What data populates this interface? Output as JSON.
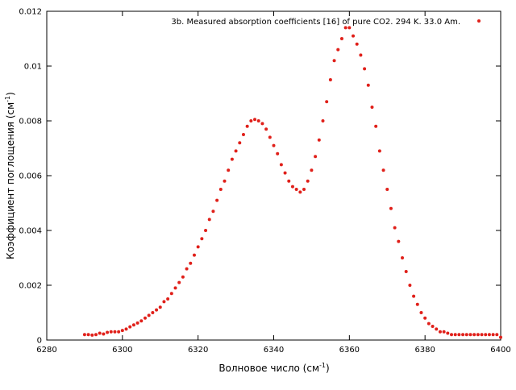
{
  "chart_data": {
    "type": "scatter",
    "xlabel": [
      "Волновое число (см",
      "-1",
      ")"
    ],
    "ylabel": [
      "Коэффициент поглощения (см",
      "-1",
      ")"
    ],
    "xlim": [
      6280,
      6400
    ],
    "xticks": [
      6280,
      6300,
      6320,
      6340,
      6360,
      6380,
      6400
    ],
    "ylim": [
      0,
      0.012
    ],
    "yticks": [
      0,
      0.002,
      0.004,
      0.006,
      0.008,
      0.01,
      0.012
    ],
    "legend": "top-right",
    "series": [
      {
        "name": "3b. Measured absorption coefficients [16] of pure CO2. 294 K. 33.0 Am.",
        "color": "#e0201a",
        "x": [
          6290,
          6291,
          6292,
          6293,
          6294,
          6295,
          6296,
          6297,
          6298,
          6299,
          6300,
          6301,
          6302,
          6303,
          6304,
          6305,
          6306,
          6307,
          6308,
          6309,
          6310,
          6311,
          6312,
          6313,
          6314,
          6315,
          6316,
          6317,
          6318,
          6319,
          6320,
          6321,
          6322,
          6323,
          6324,
          6325,
          6326,
          6327,
          6328,
          6329,
          6330,
          6331,
          6332,
          6333,
          6334,
          6335,
          6336,
          6337,
          6338,
          6339,
          6340,
          6341,
          6342,
          6343,
          6344,
          6345,
          6346,
          6347,
          6348,
          6349,
          6350,
          6351,
          6352,
          6353,
          6354,
          6355,
          6356,
          6357,
          6358,
          6359,
          6360,
          6361,
          6362,
          6363,
          6364,
          6365,
          6366,
          6367,
          6368,
          6369,
          6370,
          6371,
          6372,
          6373,
          6374,
          6375,
          6376,
          6377,
          6378,
          6379,
          6380,
          6381,
          6382,
          6383,
          6384,
          6385,
          6386,
          6387,
          6388,
          6389,
          6390,
          6391,
          6392,
          6393,
          6394,
          6395,
          6396,
          6397,
          6398,
          6399,
          6400
        ],
        "values": [
          0.0002,
          0.0002,
          0.00018,
          0.0002,
          0.00025,
          0.00022,
          0.00028,
          0.0003,
          0.0003,
          0.0003,
          0.00035,
          0.0004,
          0.00048,
          0.00055,
          0.00062,
          0.0007,
          0.0008,
          0.0009,
          0.001,
          0.0011,
          0.0012,
          0.0014,
          0.0015,
          0.0017,
          0.0019,
          0.0021,
          0.0023,
          0.0026,
          0.0028,
          0.0031,
          0.0034,
          0.0037,
          0.004,
          0.0044,
          0.0047,
          0.0051,
          0.0055,
          0.0058,
          0.0062,
          0.0066,
          0.0069,
          0.0072,
          0.0075,
          0.0078,
          0.008,
          0.00805,
          0.008,
          0.0079,
          0.0077,
          0.0074,
          0.0071,
          0.0068,
          0.0064,
          0.0061,
          0.0058,
          0.0056,
          0.0055,
          0.0054,
          0.0055,
          0.0058,
          0.0062,
          0.0067,
          0.0073,
          0.008,
          0.0087,
          0.0095,
          0.0102,
          0.0106,
          0.011,
          0.0114,
          0.0114,
          0.0111,
          0.0108,
          0.0104,
          0.0099,
          0.0093,
          0.0085,
          0.0078,
          0.0069,
          0.0062,
          0.0055,
          0.0048,
          0.0041,
          0.0036,
          0.003,
          0.0025,
          0.002,
          0.0016,
          0.0013,
          0.001,
          0.0008,
          0.0006,
          0.0005,
          0.0004,
          0.0003,
          0.0003,
          0.00025,
          0.0002,
          0.0002,
          0.0002,
          0.0002,
          0.0002,
          0.0002,
          0.0002,
          0.0002,
          0.0002,
          0.0002,
          0.0002,
          0.0002,
          0.0002,
          0.0001
        ]
      }
    ]
  }
}
